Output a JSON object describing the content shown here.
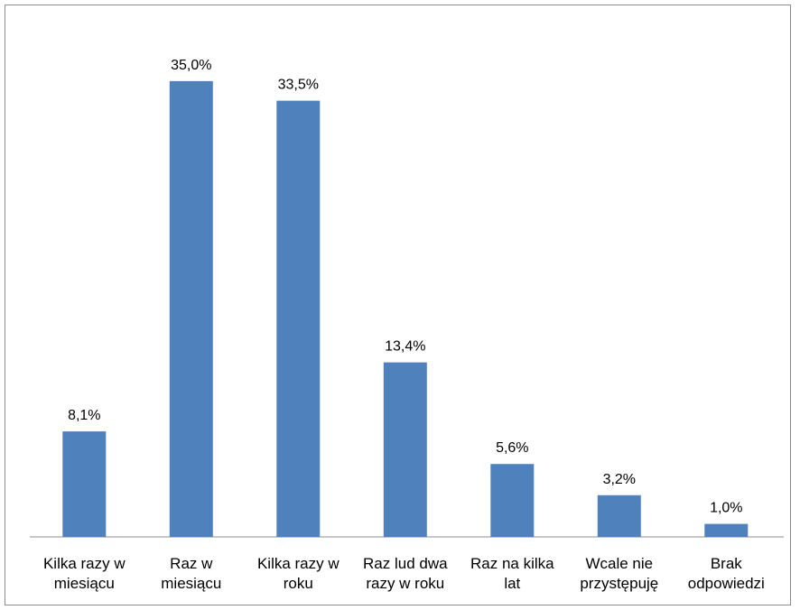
{
  "chart_data": {
    "type": "bar",
    "categories": [
      "Kilka razy w miesiącu",
      "Raz w miesiącu",
      "Kilka razy w roku",
      "Raz lud dwa razy w roku",
      "Raz na kilka lat",
      "Wcale nie przystępuję",
      "Brak odpowiedzi"
    ],
    "category_lines": [
      [
        "Kilka razy w",
        "miesiącu"
      ],
      [
        "Raz w",
        "miesiącu"
      ],
      [
        "Kilka razy w",
        "roku"
      ],
      [
        "Raz lud dwa",
        "razy w roku"
      ],
      [
        "Raz na kilka",
        "lat"
      ],
      [
        "Wcale nie",
        "przystępuję"
      ],
      [
        "Brak",
        "odpowiedzi"
      ]
    ],
    "values": [
      8.1,
      35.0,
      33.5,
      13.4,
      5.6,
      3.2,
      1.0
    ],
    "value_labels": [
      "8,1%",
      "35,0%",
      "33,5%",
      "13,4%",
      "5,6%",
      "3,2%",
      "1,0%"
    ],
    "ylim": [
      0,
      40
    ],
    "bar_color": "#4f81bd",
    "grid": false,
    "legend": "none"
  }
}
